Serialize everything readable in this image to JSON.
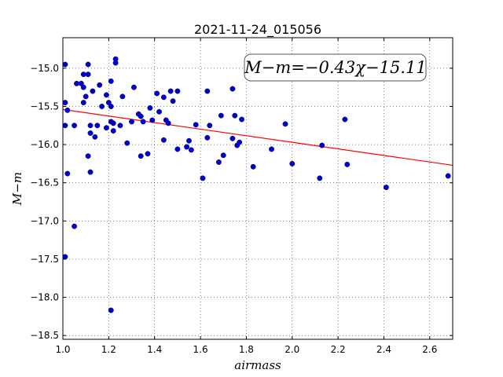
{
  "chart_data": {
    "type": "scatter",
    "title": "2021-11-24_015056",
    "xlabel": "airmass",
    "ylabel": "M−m",
    "xlim": [
      1.0,
      2.7
    ],
    "ylim": [
      -18.55,
      -14.6
    ],
    "y_inverted": true,
    "grid": true,
    "xticks": [
      1.0,
      1.2,
      1.4,
      1.6,
      1.8,
      2.0,
      2.2,
      2.4,
      2.6
    ],
    "xtick_labels": [
      "1.0",
      "1.2",
      "1.4",
      "1.6",
      "1.8",
      "2.0",
      "2.2",
      "2.4",
      "2.6"
    ],
    "yticks": [
      -15.0,
      -15.5,
      -16.0,
      -16.5,
      -17.0,
      -17.5,
      -18.0,
      -18.5
    ],
    "ytick_labels": [
      "−15.0",
      "−15.5",
      "−16.0",
      "−16.5",
      "−17.0",
      "−17.5",
      "−18.0",
      "−18.5"
    ],
    "annotation": "M−m=−0.43χ−15.11",
    "fit": {
      "slope": -0.43,
      "intercept": -15.11,
      "color": "#ff0000"
    },
    "point_color": "#0000cc",
    "points": [
      {
        "x": 1.01,
        "y": -14.95
      },
      {
        "x": 1.01,
        "y": -15.45
      },
      {
        "x": 1.02,
        "y": -15.55
      },
      {
        "x": 1.01,
        "y": -15.75
      },
      {
        "x": 1.02,
        "y": -16.38
      },
      {
        "x": 1.01,
        "y": -17.47
      },
      {
        "x": 1.05,
        "y": -17.07
      },
      {
        "x": 1.05,
        "y": -15.75
      },
      {
        "x": 1.06,
        "y": -15.2
      },
      {
        "x": 1.08,
        "y": -15.2
      },
      {
        "x": 1.09,
        "y": -15.25
      },
      {
        "x": 1.09,
        "y": -15.08
      },
      {
        "x": 1.09,
        "y": -15.45
      },
      {
        "x": 1.1,
        "y": -15.37
      },
      {
        "x": 1.11,
        "y": -14.95
      },
      {
        "x": 1.11,
        "y": -15.08
      },
      {
        "x": 1.11,
        "y": -16.15
      },
      {
        "x": 1.12,
        "y": -15.75
      },
      {
        "x": 1.12,
        "y": -15.85
      },
      {
        "x": 1.12,
        "y": -16.36
      },
      {
        "x": 1.13,
        "y": -15.3
      },
      {
        "x": 1.14,
        "y": -15.9
      },
      {
        "x": 1.15,
        "y": -15.75
      },
      {
        "x": 1.16,
        "y": -15.22
      },
      {
        "x": 1.17,
        "y": -15.5
      },
      {
        "x": 1.19,
        "y": -15.35
      },
      {
        "x": 1.19,
        "y": -15.78
      },
      {
        "x": 1.2,
        "y": -15.45
      },
      {
        "x": 1.21,
        "y": -15.17
      },
      {
        "x": 1.21,
        "y": -15.5
      },
      {
        "x": 1.21,
        "y": -15.7
      },
      {
        "x": 1.22,
        "y": -15.72
      },
      {
        "x": 1.22,
        "y": -15.82
      },
      {
        "x": 1.23,
        "y": -14.88
      },
      {
        "x": 1.23,
        "y": -14.93
      },
      {
        "x": 1.21,
        "y": -18.17
      },
      {
        "x": 1.25,
        "y": -15.75
      },
      {
        "x": 1.26,
        "y": -15.37
      },
      {
        "x": 1.28,
        "y": -15.98
      },
      {
        "x": 1.3,
        "y": -15.7
      },
      {
        "x": 1.31,
        "y": -15.25
      },
      {
        "x": 1.33,
        "y": -15.6
      },
      {
        "x": 1.34,
        "y": -15.63
      },
      {
        "x": 1.34,
        "y": -16.15
      },
      {
        "x": 1.35,
        "y": -15.7
      },
      {
        "x": 1.37,
        "y": -16.12
      },
      {
        "x": 1.38,
        "y": -15.52
      },
      {
        "x": 1.39,
        "y": -15.68
      },
      {
        "x": 1.41,
        "y": -15.33
      },
      {
        "x": 1.42,
        "y": -15.57
      },
      {
        "x": 1.44,
        "y": -15.38
      },
      {
        "x": 1.44,
        "y": -15.94
      },
      {
        "x": 1.45,
        "y": -15.68
      },
      {
        "x": 1.46,
        "y": -15.72
      },
      {
        "x": 1.47,
        "y": -15.3
      },
      {
        "x": 1.48,
        "y": -15.43
      },
      {
        "x": 1.5,
        "y": -15.3
      },
      {
        "x": 1.5,
        "y": -16.06
      },
      {
        "x": 1.54,
        "y": -16.03
      },
      {
        "x": 1.55,
        "y": -15.95
      },
      {
        "x": 1.56,
        "y": -16.07
      },
      {
        "x": 1.58,
        "y": -15.74
      },
      {
        "x": 1.61,
        "y": -16.44
      },
      {
        "x": 1.63,
        "y": -15.91
      },
      {
        "x": 1.63,
        "y": -15.3
      },
      {
        "x": 1.64,
        "y": -15.75
      },
      {
        "x": 1.68,
        "y": -16.23
      },
      {
        "x": 1.69,
        "y": -15.62
      },
      {
        "x": 1.7,
        "y": -16.14
      },
      {
        "x": 1.74,
        "y": -15.27
      },
      {
        "x": 1.74,
        "y": -15.92
      },
      {
        "x": 1.75,
        "y": -15.62
      },
      {
        "x": 1.76,
        "y": -16.01
      },
      {
        "x": 1.77,
        "y": -15.97
      },
      {
        "x": 1.78,
        "y": -15.67
      },
      {
        "x": 1.83,
        "y": -16.29
      },
      {
        "x": 1.91,
        "y": -16.06
      },
      {
        "x": 1.97,
        "y": -15.73
      },
      {
        "x": 2.0,
        "y": -16.25
      },
      {
        "x": 2.12,
        "y": -16.44
      },
      {
        "x": 2.13,
        "y": -16.01
      },
      {
        "x": 2.23,
        "y": -15.67
      },
      {
        "x": 2.24,
        "y": -16.26
      },
      {
        "x": 2.41,
        "y": -16.56
      },
      {
        "x": 2.68,
        "y": -16.41
      }
    ]
  }
}
